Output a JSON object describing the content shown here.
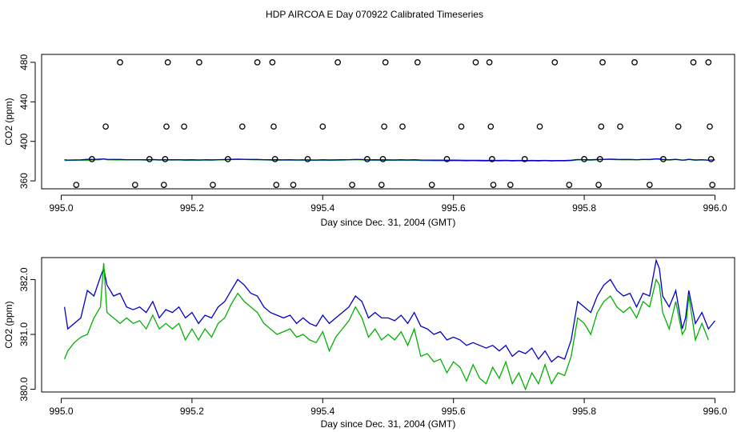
{
  "title": "HDP AIRCOA E  Day 070922  Calibrated Timeseries",
  "colors": {
    "blue": "#0000cc",
    "green": "#00b000",
    "black": "#000000"
  },
  "chart_data": [
    {
      "type": "scatter",
      "xlabel": "Day since Dec. 31, 2004 (GMT)",
      "ylabel": "CO2 (ppm)",
      "xlim": [
        994.97,
        996.03
      ],
      "ylim": [
        352,
        488
      ],
      "xticks": [
        "995.0",
        "995.2",
        "995.4",
        "995.6",
        "995.8",
        "996.0"
      ],
      "yticks": [
        "360",
        "400",
        "440",
        "480"
      ],
      "xtick_values": [
        995.0,
        995.2,
        995.4,
        995.6,
        995.8,
        996.0
      ],
      "ytick_values": [
        360,
        400,
        440,
        480
      ],
      "grid": false,
      "points": [
        [
          995.023,
          356
        ],
        [
          995.047,
          382
        ],
        [
          995.068,
          415
        ],
        [
          995.09,
          480
        ],
        [
          995.113,
          356
        ],
        [
          995.135,
          382
        ],
        [
          995.157,
          356
        ],
        [
          995.159,
          382
        ],
        [
          995.161,
          415
        ],
        [
          995.163,
          480
        ],
        [
          995.188,
          415
        ],
        [
          995.211,
          480
        ],
        [
          995.232,
          356
        ],
        [
          995.255,
          382
        ],
        [
          995.277,
          415
        ],
        [
          995.3,
          480
        ],
        [
          995.323,
          480
        ],
        [
          995.325,
          415
        ],
        [
          995.327,
          382
        ],
        [
          995.329,
          356
        ],
        [
          995.355,
          356
        ],
        [
          995.377,
          382
        ],
        [
          995.4,
          415
        ],
        [
          995.423,
          480
        ],
        [
          995.445,
          356
        ],
        [
          995.468,
          382
        ],
        [
          995.49,
          356
        ],
        [
          995.492,
          382
        ],
        [
          995.494,
          415
        ],
        [
          995.496,
          480
        ],
        [
          995.522,
          415
        ],
        [
          995.545,
          480
        ],
        [
          995.567,
          356
        ],
        [
          995.59,
          382
        ],
        [
          995.612,
          415
        ],
        [
          995.634,
          480
        ],
        [
          995.655,
          480
        ],
        [
          995.657,
          415
        ],
        [
          995.659,
          382
        ],
        [
          995.661,
          356
        ],
        [
          995.687,
          356
        ],
        [
          995.709,
          382
        ],
        [
          995.732,
          415
        ],
        [
          995.755,
          480
        ],
        [
          995.777,
          356
        ],
        [
          995.8,
          382
        ],
        [
          995.822,
          356
        ],
        [
          995.824,
          382
        ],
        [
          995.826,
          415
        ],
        [
          995.828,
          480
        ],
        [
          995.855,
          415
        ],
        [
          995.877,
          480
        ],
        [
          995.9,
          356
        ],
        [
          995.921,
          382
        ],
        [
          995.944,
          415
        ],
        [
          995.967,
          480
        ],
        [
          995.99,
          480
        ],
        [
          995.992,
          415
        ],
        [
          995.994,
          382
        ],
        [
          995.996,
          356
        ]
      ],
      "series": [
        {
          "color": "#00b000",
          "values_ref": "panel2.green"
        },
        {
          "color": "#0000cc",
          "values_ref": "panel2.blue"
        }
      ]
    },
    {
      "type": "line",
      "xlabel": "Day since Dec. 31, 2004 (GMT)",
      "ylabel": "CO2 (ppm)",
      "xlim": [
        994.97,
        996.03
      ],
      "ylim": [
        379.95,
        382.4
      ],
      "xticks": [
        "995.0",
        "995.2",
        "995.4",
        "995.6",
        "995.8",
        "996.0"
      ],
      "yticks": [
        "380.0",
        "381.0",
        "382.0"
      ],
      "xtick_values": [
        995.0,
        995.2,
        995.4,
        995.6,
        995.8,
        996.0
      ],
      "ytick_values": [
        380.0,
        381.0,
        382.0
      ],
      "grid": false,
      "series": [
        {
          "color": "#0000cc",
          "x": [
            995.005,
            995.01,
            995.02,
            995.03,
            995.04,
            995.05,
            995.06,
            995.065,
            995.07,
            995.08,
            995.09,
            995.1,
            995.11,
            995.12,
            995.13,
            995.14,
            995.15,
            995.16,
            995.17,
            995.18,
            995.19,
            995.2,
            995.21,
            995.22,
            995.23,
            995.24,
            995.25,
            995.26,
            995.27,
            995.28,
            995.29,
            995.3,
            995.31,
            995.32,
            995.33,
            995.34,
            995.35,
            995.36,
            995.37,
            995.38,
            995.39,
            995.4,
            995.41,
            995.42,
            995.43,
            995.44,
            995.45,
            995.46,
            995.47,
            995.48,
            995.49,
            995.5,
            995.51,
            995.52,
            995.53,
            995.54,
            995.55,
            995.56,
            995.57,
            995.58,
            995.59,
            995.6,
            995.61,
            995.62,
            995.63,
            995.64,
            995.65,
            995.66,
            995.67,
            995.68,
            995.69,
            995.7,
            995.71,
            995.72,
            995.73,
            995.74,
            995.75,
            995.76,
            995.77,
            995.78,
            995.79,
            995.8,
            995.81,
            995.82,
            995.83,
            995.84,
            995.85,
            995.86,
            995.87,
            995.88,
            995.89,
            995.9,
            995.91,
            995.915,
            995.92,
            995.93,
            995.94,
            995.95,
            995.955,
            995.96,
            995.97,
            995.98,
            995.99,
            996.0
          ],
          "y": [
            381.5,
            381.1,
            381.2,
            381.3,
            381.8,
            381.7,
            382.05,
            382.2,
            381.9,
            381.7,
            381.75,
            381.5,
            381.45,
            381.5,
            381.4,
            381.6,
            381.3,
            381.45,
            381.4,
            381.5,
            381.3,
            381.4,
            381.2,
            381.35,
            381.3,
            381.5,
            381.6,
            381.8,
            382.0,
            381.9,
            381.75,
            381.7,
            381.5,
            381.4,
            381.35,
            381.3,
            381.35,
            381.2,
            381.3,
            381.2,
            381.15,
            381.35,
            381.2,
            381.3,
            381.4,
            381.5,
            381.7,
            381.6,
            381.3,
            381.4,
            381.3,
            381.3,
            381.25,
            381.35,
            381.2,
            381.4,
            381.15,
            381.1,
            381.0,
            381.05,
            380.9,
            380.95,
            380.9,
            380.8,
            380.85,
            380.8,
            380.75,
            380.8,
            380.7,
            380.8,
            380.6,
            380.7,
            380.65,
            380.75,
            380.55,
            380.7,
            380.5,
            380.6,
            380.55,
            380.9,
            381.6,
            381.5,
            381.4,
            381.7,
            381.9,
            382.0,
            381.8,
            381.7,
            381.75,
            381.5,
            381.75,
            381.7,
            382.35,
            382.2,
            381.7,
            381.5,
            381.8,
            381.1,
            381.3,
            381.8,
            381.2,
            381.4,
            381.1,
            381.25
          ]
        },
        {
          "color": "#00b000",
          "x": [
            995.005,
            995.01,
            995.02,
            995.03,
            995.04,
            995.05,
            995.06,
            995.065,
            995.07,
            995.08,
            995.09,
            995.1,
            995.11,
            995.12,
            995.13,
            995.14,
            995.15,
            995.16,
            995.17,
            995.18,
            995.19,
            995.2,
            995.21,
            995.22,
            995.23,
            995.24,
            995.25,
            995.26,
            995.27,
            995.28,
            995.29,
            995.3,
            995.31,
            995.32,
            995.33,
            995.34,
            995.35,
            995.36,
            995.37,
            995.38,
            995.39,
            995.4,
            995.41,
            995.42,
            995.43,
            995.44,
            995.45,
            995.46,
            995.47,
            995.48,
            995.49,
            995.5,
            995.51,
            995.52,
            995.53,
            995.54,
            995.55,
            995.56,
            995.57,
            995.58,
            995.59,
            995.6,
            995.61,
            995.62,
            995.63,
            995.64,
            995.65,
            995.66,
            995.67,
            995.68,
            995.69,
            995.7,
            995.71,
            995.72,
            995.73,
            995.74,
            995.75,
            995.76,
            995.77,
            995.78,
            995.79,
            995.8,
            995.81,
            995.82,
            995.83,
            995.84,
            995.85,
            995.86,
            995.87,
            995.88,
            995.89,
            995.9,
            995.91,
            995.915,
            995.92,
            995.93,
            995.94,
            995.95,
            995.955,
            995.96,
            995.97,
            995.98,
            995.99
          ],
          "y": [
            380.55,
            380.7,
            380.85,
            380.95,
            381.0,
            381.3,
            381.5,
            382.3,
            381.4,
            381.3,
            381.2,
            381.3,
            381.2,
            381.25,
            381.1,
            381.35,
            381.1,
            381.2,
            381.1,
            381.2,
            380.9,
            381.1,
            380.9,
            381.1,
            380.95,
            381.2,
            381.3,
            381.55,
            381.75,
            381.6,
            381.5,
            381.4,
            381.2,
            381.1,
            381.0,
            381.05,
            381.1,
            380.95,
            381.0,
            380.9,
            380.85,
            381.05,
            380.7,
            380.95,
            381.1,
            381.25,
            381.5,
            381.3,
            380.95,
            381.1,
            380.9,
            381.0,
            380.9,
            381.05,
            380.8,
            381.1,
            380.6,
            380.65,
            380.5,
            380.55,
            380.3,
            380.5,
            380.4,
            380.15,
            380.45,
            380.2,
            380.1,
            380.4,
            380.2,
            380.5,
            380.1,
            380.3,
            380.0,
            380.3,
            380.1,
            380.45,
            380.1,
            380.3,
            380.25,
            380.6,
            381.3,
            381.2,
            381.0,
            381.4,
            381.6,
            381.7,
            381.5,
            381.4,
            381.5,
            381.3,
            381.6,
            381.5,
            382.0,
            381.9,
            381.4,
            381.1,
            381.6,
            381.0,
            381.1,
            381.7,
            380.9,
            381.2,
            380.9
          ]
        }
      ]
    }
  ]
}
